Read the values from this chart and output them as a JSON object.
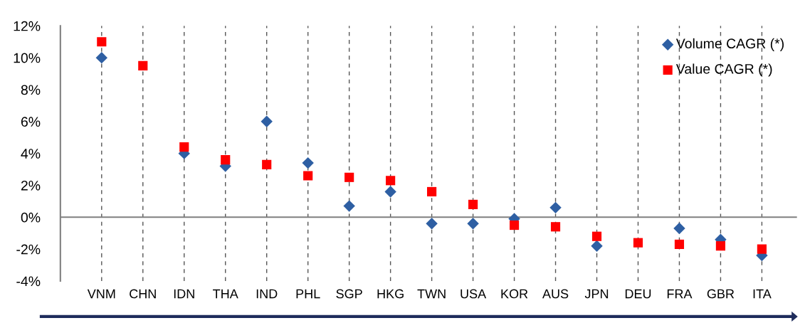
{
  "chart_data": {
    "type": "scatter",
    "categories": [
      "VNM",
      "CHN",
      "IDN",
      "THA",
      "IND",
      "PHL",
      "SGP",
      "HKG",
      "TWN",
      "USA",
      "KOR",
      "AUS",
      "JPN",
      "DEU",
      "FRA",
      "GBR",
      "ITA"
    ],
    "series": [
      {
        "name": "Volume CAGR (*)",
        "color": "#2e5fa3",
        "marker": "diamond",
        "values": [
          10.0,
          null,
          4.0,
          3.2,
          6.0,
          3.4,
          0.7,
          1.6,
          -0.4,
          -0.4,
          -0.1,
          0.6,
          -1.8,
          null,
          -0.7,
          -1.4,
          -2.4
        ]
      },
      {
        "name": "Value CAGR (*)",
        "color": "#ff0000",
        "marker": "square",
        "values": [
          11.0,
          9.5,
          4.4,
          3.6,
          3.3,
          2.6,
          2.5,
          2.3,
          1.6,
          0.8,
          -0.5,
          -0.6,
          -1.2,
          -1.6,
          -1.7,
          -1.8,
          -2.0
        ]
      }
    ],
    "ylim": [
      -4,
      12
    ],
    "yticks": [
      {
        "value": -4,
        "label": "-4%"
      },
      {
        "value": -2,
        "label": "-2%"
      },
      {
        "value": 0,
        "label": "0%"
      },
      {
        "value": 2,
        "label": "2%"
      },
      {
        "value": 4,
        "label": "4%"
      },
      {
        "value": 6,
        "label": "6%"
      },
      {
        "value": 8,
        "label": "8%"
      },
      {
        "value": 10,
        "label": "10%"
      },
      {
        "value": 12,
        "label": "12%"
      }
    ],
    "ref_lines": [
      {
        "axis": "y",
        "value": 0,
        "color": "#7f7f7f"
      }
    ],
    "grid": "x",
    "legend": "top right"
  }
}
